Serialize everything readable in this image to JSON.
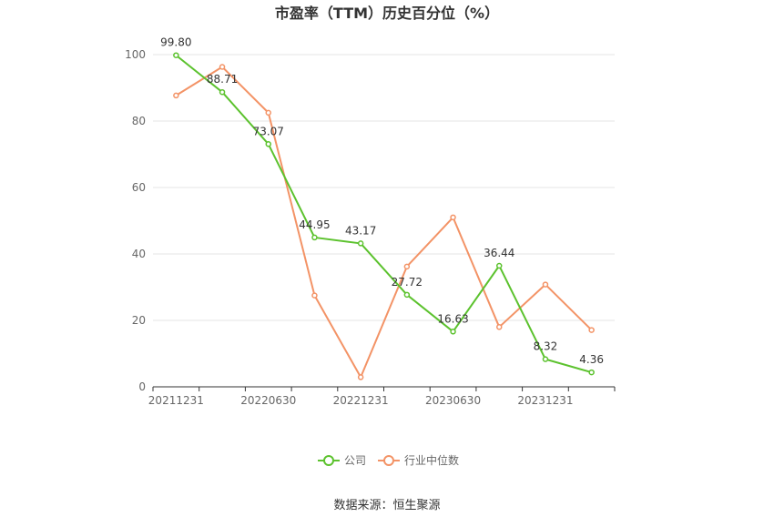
{
  "chart_data": {
    "type": "line",
    "title": "市盈率（TTM）历史百分位（%）",
    "x": [
      "20211231",
      "20220331",
      "20220630",
      "20220930",
      "20221231",
      "20230331",
      "20230630",
      "20230930",
      "20231231",
      "20240331"
    ],
    "x_tick_labels": [
      "20211231",
      "20220630",
      "20221231",
      "20230630",
      "20231231"
    ],
    "ylim": [
      0,
      100
    ],
    "y_ticks": [
      0,
      20,
      40,
      60,
      80,
      100
    ],
    "grid": true,
    "legend_position": "bottom",
    "series": [
      {
        "name": "公司",
        "color": "#5cc22e",
        "values": [
          99.8,
          88.71,
          73.07,
          44.95,
          43.17,
          27.72,
          16.63,
          36.44,
          8.32,
          4.36
        ],
        "labels": [
          "99.80",
          "88.71",
          "73.07",
          "44.95",
          "43.17",
          "27.72",
          "16.63",
          "36.44",
          "8.32",
          "4.36"
        ]
      },
      {
        "name": "行业中位数",
        "color": "#f39366",
        "values": [
          87.7,
          96.3,
          82.5,
          27.5,
          2.9,
          36.2,
          51.0,
          18.0,
          30.8,
          17.1
        ]
      }
    ]
  },
  "footer": {
    "source": "数据来源：恒生聚源"
  }
}
